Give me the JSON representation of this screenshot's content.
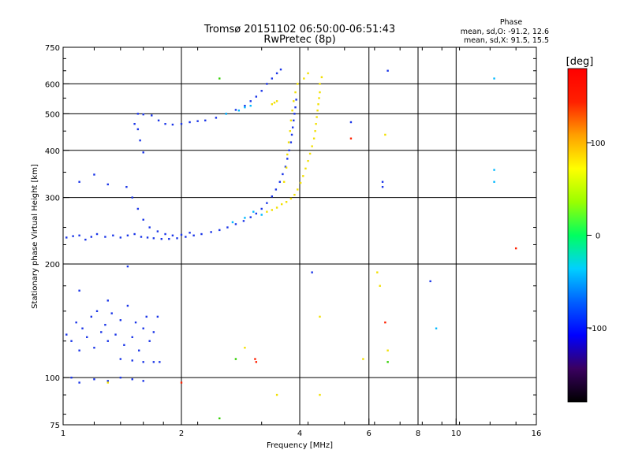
{
  "chart_data": {
    "type": "scatter",
    "title": "Tromsø 20151102 06:50:00-06:51:43",
    "subtitle": "RwPretec (8p)",
    "xlabel": "Frequency [MHz]",
    "ylabel": "Stationary phase Virtual Height [km]",
    "x_scale": "log",
    "y_scale": "log",
    "xlim": [
      1,
      16
    ],
    "ylim": [
      75,
      750
    ],
    "x_ticks": [
      1,
      2,
      4,
      6,
      8,
      10,
      16
    ],
    "x_tick_labels": [
      "1",
      "2",
      "4",
      "6",
      "8",
      "10",
      "16"
    ],
    "x_grid": [
      2,
      4,
      6,
      8,
      10
    ],
    "y_ticks": [
      75,
      100,
      200,
      300,
      400,
      500,
      600,
      750
    ],
    "y_tick_labels": [
      "75",
      "100",
      "200",
      "300",
      "400",
      "500",
      "600",
      "750"
    ],
    "y_grid": [
      100,
      200,
      300,
      400,
      500,
      600
    ],
    "grid": true,
    "phase_stats": {
      "heading": "Phase",
      "line_o": "mean, sd,O: -91.2, 12.6",
      "line_x": "mean, sd,X:  91.5, 15.5"
    },
    "colorbar": {
      "label": "[deg]",
      "range": [
        -180,
        180
      ],
      "ticks": [
        100,
        0,
        -100
      ],
      "tick_labels": [
        "100",
        "0",
        "-100"
      ],
      "colors": [
        "#000000",
        "#3a0060",
        "#0000ff",
        "#0060ff",
        "#00d0ff",
        "#00ff60",
        "#9aff00",
        "#ffff00",
        "#ffa000",
        "#ff2000",
        "#ff0000"
      ]
    },
    "series": [
      {
        "mode": "O",
        "phase_deg": -90,
        "color": "#1a35e8",
        "points": [
          [
            1.02,
            235
          ],
          [
            1.06,
            237
          ],
          [
            1.1,
            238
          ],
          [
            1.14,
            232
          ],
          [
            1.18,
            236
          ],
          [
            1.22,
            240
          ],
          [
            1.28,
            236
          ],
          [
            1.34,
            238
          ],
          [
            1.4,
            235
          ],
          [
            1.46,
            238
          ],
          [
            1.52,
            240
          ],
          [
            1.58,
            236
          ],
          [
            1.64,
            235
          ],
          [
            1.7,
            234
          ],
          [
            1.78,
            233
          ],
          [
            1.86,
            233
          ],
          [
            1.95,
            234
          ],
          [
            2.05,
            236
          ],
          [
            2.15,
            238
          ],
          [
            2.25,
            240
          ],
          [
            2.38,
            243
          ],
          [
            2.5,
            246
          ],
          [
            2.62,
            250
          ],
          [
            2.75,
            255
          ],
          [
            2.88,
            260
          ],
          [
            3.0,
            266
          ],
          [
            3.1,
            272
          ],
          [
            3.2,
            280
          ],
          [
            3.3,
            290
          ],
          [
            3.4,
            302
          ],
          [
            3.48,
            315
          ],
          [
            3.56,
            330
          ],
          [
            3.62,
            346
          ],
          [
            3.68,
            362
          ],
          [
            3.72,
            380
          ],
          [
            3.76,
            400
          ],
          [
            3.8,
            420
          ],
          [
            3.82,
            440
          ],
          [
            3.84,
            460
          ],
          [
            3.86,
            480
          ],
          [
            3.88,
            500
          ],
          [
            3.9,
            520
          ],
          [
            3.92,
            545
          ],
          [
            1.5,
            300
          ],
          [
            1.55,
            280
          ],
          [
            1.6,
            262
          ],
          [
            1.66,
            250
          ],
          [
            1.74,
            244
          ],
          [
            1.82,
            240
          ],
          [
            1.9,
            238
          ],
          [
            2.0,
            239
          ],
          [
            2.1,
            242
          ],
          [
            1.55,
            500
          ],
          [
            1.6,
            498
          ],
          [
            1.68,
            495
          ],
          [
            1.75,
            480
          ],
          [
            1.82,
            470
          ],
          [
            1.9,
            468
          ],
          [
            2.0,
            470
          ],
          [
            2.1,
            475
          ],
          [
            2.2,
            478
          ],
          [
            2.3,
            480
          ],
          [
            2.45,
            488
          ],
          [
            2.6,
            500
          ],
          [
            2.75,
            512
          ],
          [
            2.9,
            525
          ],
          [
            3.0,
            540
          ],
          [
            3.1,
            555
          ],
          [
            3.2,
            575
          ],
          [
            3.3,
            600
          ],
          [
            3.4,
            620
          ],
          [
            3.5,
            640
          ],
          [
            3.58,
            655
          ],
          [
            1.55,
            455
          ],
          [
            1.57,
            425
          ],
          [
            1.6,
            395
          ],
          [
            1.52,
            470
          ],
          [
            1.02,
            130
          ],
          [
            1.05,
            125
          ],
          [
            1.08,
            140
          ],
          [
            1.1,
            118
          ],
          [
            1.12,
            135
          ],
          [
            1.15,
            128
          ],
          [
            1.18,
            145
          ],
          [
            1.2,
            120
          ],
          [
            1.22,
            150
          ],
          [
            1.25,
            132
          ],
          [
            1.28,
            138
          ],
          [
            1.3,
            125
          ],
          [
            1.33,
            148
          ],
          [
            1.36,
            130
          ],
          [
            1.4,
            142
          ],
          [
            1.43,
            122
          ],
          [
            1.46,
            155
          ],
          [
            1.5,
            128
          ],
          [
            1.53,
            140
          ],
          [
            1.56,
            118
          ],
          [
            1.6,
            135
          ],
          [
            1.63,
            145
          ],
          [
            1.66,
            125
          ],
          [
            1.7,
            132
          ],
          [
            1.74,
            145
          ],
          [
            1.76,
            110
          ],
          [
            1.7,
            110
          ],
          [
            1.6,
            110
          ],
          [
            1.5,
            111
          ],
          [
            1.4,
            112
          ],
          [
            1.05,
            100
          ],
          [
            1.1,
            97
          ],
          [
            1.2,
            99
          ],
          [
            1.3,
            98
          ],
          [
            1.4,
            100
          ],
          [
            1.5,
            99
          ],
          [
            1.6,
            98
          ],
          [
            1.1,
            170
          ],
          [
            1.3,
            160
          ],
          [
            1.46,
            197
          ],
          [
            1.1,
            330
          ],
          [
            1.2,
            345
          ],
          [
            1.3,
            325
          ],
          [
            1.45,
            320
          ],
          [
            6.5,
            330
          ],
          [
            6.5,
            320
          ],
          [
            6.7,
            650
          ],
          [
            8.6,
            180
          ],
          [
            4.3,
            190
          ],
          [
            5.4,
            475
          ]
        ]
      },
      {
        "mode": "X",
        "phase_deg": 100,
        "color": "#f2e000",
        "points": [
          [
            3.3,
            275
          ],
          [
            3.4,
            278
          ],
          [
            3.5,
            282
          ],
          [
            3.6,
            288
          ],
          [
            3.7,
            292
          ],
          [
            3.8,
            298
          ],
          [
            3.88,
            305
          ],
          [
            3.95,
            315
          ],
          [
            4.02,
            328
          ],
          [
            4.08,
            342
          ],
          [
            4.14,
            358
          ],
          [
            4.2,
            375
          ],
          [
            4.25,
            392
          ],
          [
            4.3,
            410
          ],
          [
            4.35,
            430
          ],
          [
            4.38,
            450
          ],
          [
            4.4,
            470
          ],
          [
            4.42,
            490
          ],
          [
            4.44,
            510
          ],
          [
            4.46,
            530
          ],
          [
            4.48,
            550
          ],
          [
            4.5,
            570
          ],
          [
            4.5,
            600
          ],
          [
            4.55,
            625
          ],
          [
            3.65,
            330
          ],
          [
            3.7,
            360
          ],
          [
            3.72,
            390
          ],
          [
            3.75,
            420
          ],
          [
            3.78,
            450
          ],
          [
            3.8,
            480
          ],
          [
            3.83,
            510
          ],
          [
            3.86,
            540
          ],
          [
            3.9,
            570
          ],
          [
            3.95,
            600
          ],
          [
            3.4,
            530
          ],
          [
            3.45,
            535
          ],
          [
            3.5,
            540
          ],
          [
            4.2,
            640
          ],
          [
            4.1,
            620
          ],
          [
            6.6,
            440
          ],
          [
            6.3,
            190
          ],
          [
            6.4,
            175
          ],
          [
            4.5,
            145
          ],
          [
            2.9,
            120
          ],
          [
            4.5,
            90
          ],
          [
            5.8,
            112
          ],
          [
            3.5,
            90
          ],
          [
            6.7,
            118
          ],
          [
            1.3,
            97
          ]
        ]
      },
      {
        "mode": "mixed",
        "phase_deg": -30,
        "color": "#00b8ff",
        "points": [
          [
            2.6,
            500
          ],
          [
            2.8,
            510
          ],
          [
            2.9,
            520
          ],
          [
            3.0,
            525
          ],
          [
            3.05,
            275
          ],
          [
            3.2,
            270
          ],
          [
            2.9,
            265
          ],
          [
            2.7,
            258
          ],
          [
            12.5,
            355
          ],
          [
            12.5,
            330
          ],
          [
            8.9,
            135
          ],
          [
            12.5,
            620
          ]
        ]
      },
      {
        "mode": "mixed",
        "phase_deg": 170,
        "color": "#ff2000",
        "points": [
          [
            3.1,
            110
          ],
          [
            3.08,
            112
          ],
          [
            5.4,
            430
          ],
          [
            6.6,
            140
          ],
          [
            14.2,
            220
          ],
          [
            2.0,
            97
          ]
        ]
      },
      {
        "mode": "mixed",
        "phase_deg": 40,
        "color": "#30d000",
        "points": [
          [
            2.5,
            78
          ],
          [
            2.5,
            620
          ],
          [
            2.75,
            112
          ],
          [
            6.7,
            110
          ]
        ]
      }
    ]
  }
}
